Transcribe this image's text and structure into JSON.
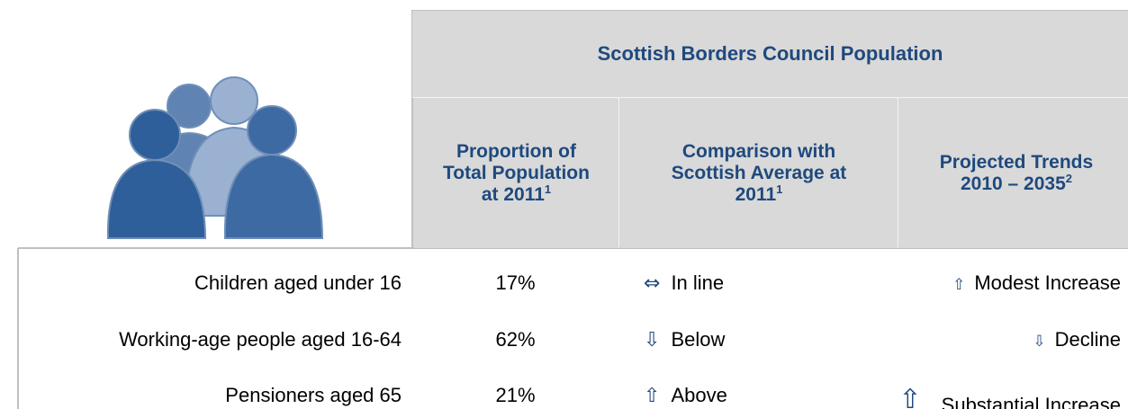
{
  "header": {
    "title": "Scottish Borders Council Population",
    "columns": [
      {
        "text": "Proportion of Total Population at 2011",
        "sup": "1"
      },
      {
        "text": "Comparison with Scottish Average at 2011",
        "sup": "1"
      },
      {
        "text": "Projected Trends 2010 – 2035",
        "sup": "2"
      }
    ]
  },
  "table": {
    "rows": [
      {
        "label": "Children aged under 16",
        "proportion": "17%",
        "comparison": {
          "arrow": "⇔",
          "text": "In line"
        },
        "trend": {
          "arrow": "⇧",
          "text": "Modest Increase"
        }
      },
      {
        "label": "Working-age people aged 16-64",
        "proportion": "62%",
        "comparison": {
          "arrow": "⇩",
          "text": "Below"
        },
        "trend": {
          "arrow": "⇩",
          "text": "Decline"
        }
      },
      {
        "label": "Pensioners aged 65",
        "proportion": "21%",
        "comparison": {
          "arrow": "⇧",
          "text": "Above"
        },
        "trend": {
          "arrow": "⇧",
          "text": "Substantial Increase"
        }
      }
    ]
  }
}
